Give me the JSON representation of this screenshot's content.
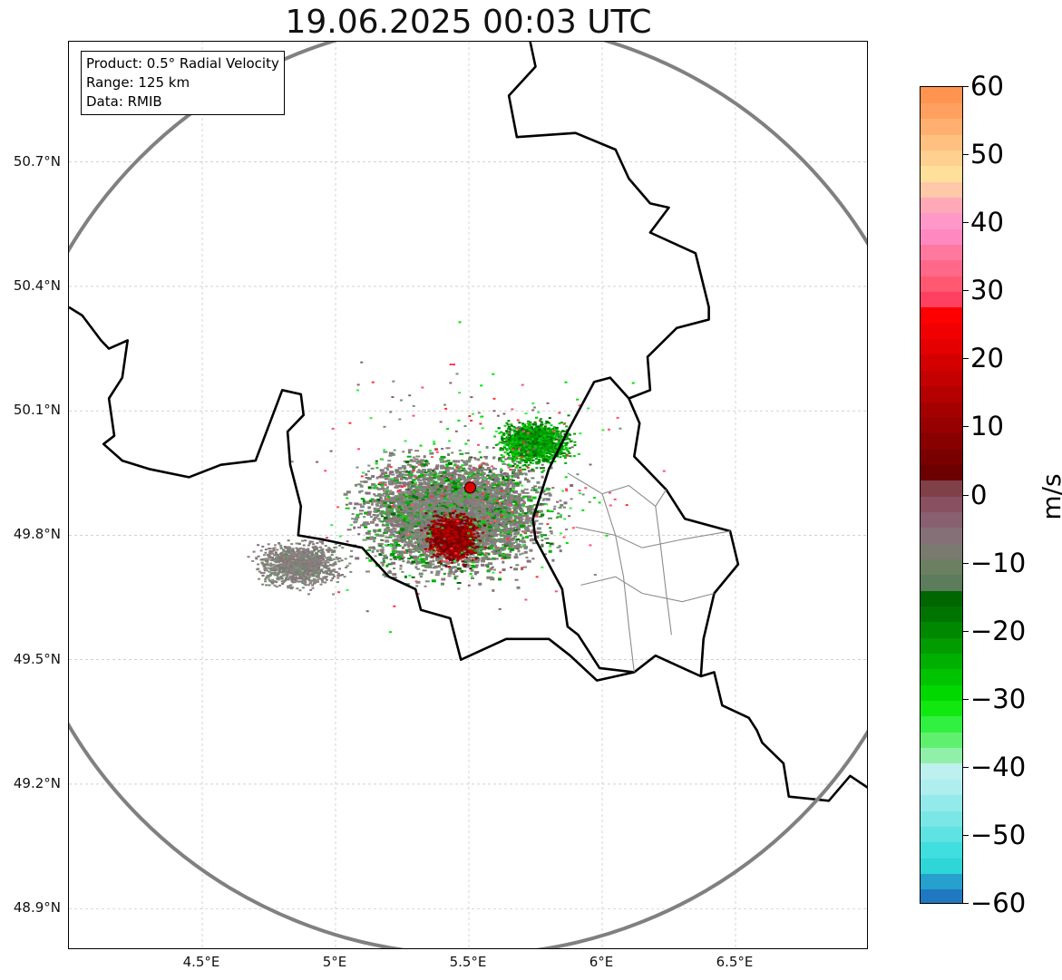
{
  "title": "19.06.2025 00:03 UTC",
  "info": {
    "product": "Product: 0.5° Radial Velocity",
    "range": "Range: 125 km",
    "source": "Data: RMIB"
  },
  "axes": {
    "lat_ticks": [
      "50.7°N",
      "50.4°N",
      "50.1°N",
      "49.8°N",
      "49.5°N",
      "49.2°N",
      "48.9°N"
    ],
    "lon_ticks": [
      "4.5°E",
      "5°E",
      "5.5°E",
      "6°E",
      "6.5°E"
    ],
    "lat_range": [
      48.8,
      50.99
    ],
    "lon_range": [
      4.0,
      7.0
    ],
    "grid": true
  },
  "radar": {
    "site_lon": 5.505,
    "site_lat": 49.915,
    "range_km": 125,
    "site_color": "#e00000"
  },
  "colorbar": {
    "label": "m/s",
    "min": -60,
    "max": 60,
    "ticks": [
      "60",
      "50",
      "40",
      "30",
      "20",
      "10",
      "0",
      "−10",
      "−20",
      "−30",
      "−40",
      "−50",
      "−60"
    ],
    "colors": [
      "#1f78c0",
      "#26a0cc",
      "#2ed6d8",
      "#40dede",
      "#5ee2e2",
      "#7ae6e6",
      "#94eaea",
      "#aeeeee",
      "#bef0f0",
      "#90f0a8",
      "#60f070",
      "#30f040",
      "#10e810",
      "#00d800",
      "#00c400",
      "#00b000",
      "#009c00",
      "#008800",
      "#007400",
      "#006600",
      "#5c7c5c",
      "#6a8060",
      "#7a7a70",
      "#857078",
      "#886070",
      "#885060",
      "#804048",
      "#6c0000",
      "#7a0000",
      "#880000",
      "#960000",
      "#a40000",
      "#b40000",
      "#c40000",
      "#d40000",
      "#e40000",
      "#f00000",
      "#ff0000",
      "#ff4060",
      "#ff5870",
      "#ff6888",
      "#ff78a0",
      "#ff88c0",
      "#ff98c8",
      "#ffa8b8",
      "#ffc8a8",
      "#ffe09a",
      "#ffd090",
      "#ffc080",
      "#ffb070",
      "#ffa060",
      "#ff9450"
    ],
    "color_low_end": "#1f78c0",
    "color_high_end": "#ff9450"
  }
}
